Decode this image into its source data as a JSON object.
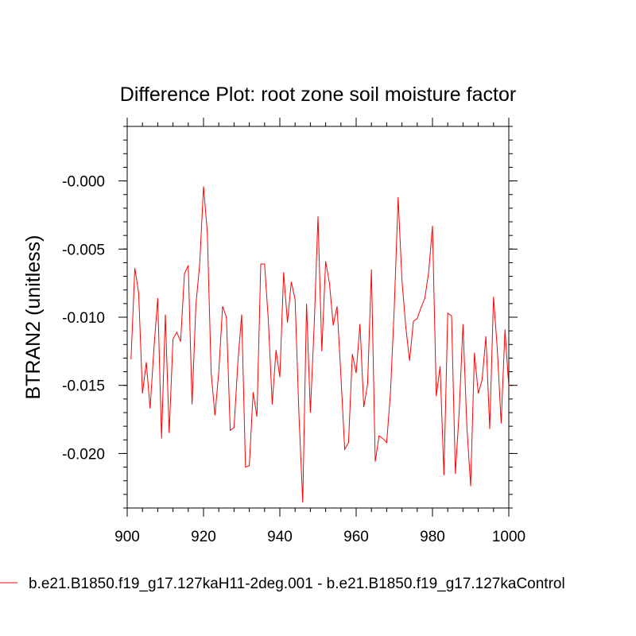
{
  "chart_data": {
    "type": "line",
    "title": "Difference Plot: root zone soil moisture factor",
    "xlabel": "",
    "ylabel": "BTRAN2  (unitless)",
    "xlim": [
      900,
      1000
    ],
    "ylim": [
      -0.024,
      0.004
    ],
    "x_ticks": [
      900,
      920,
      940,
      960,
      980,
      1000
    ],
    "x_tick_labels": [
      "900",
      "920",
      "940",
      "960",
      "980",
      "1000"
    ],
    "y_ticks": [
      0.0,
      -0.005,
      -0.01,
      -0.015,
      -0.02
    ],
    "y_tick_labels": [
      "-0.000",
      "-0.005",
      "-0.010",
      "-0.015",
      "-0.020"
    ],
    "legend_position": "bottom",
    "series": [
      {
        "name": "b.e21.B1850.f19_g17.127kaH11-2deg.001 - b.e21.B1850.f19_g17.127kaControl",
        "color": "#ff0000",
        "x": [
          901,
          902,
          903,
          904,
          905,
          906,
          907,
          908,
          909,
          910,
          911,
          912,
          913,
          914,
          915,
          916,
          917,
          918,
          919,
          920,
          921,
          922,
          923,
          924,
          925,
          926,
          927,
          928,
          929,
          930,
          931,
          932,
          933,
          934,
          935,
          936,
          937,
          938,
          939,
          940,
          941,
          942,
          943,
          944,
          945,
          946,
          947,
          948,
          949,
          950,
          951,
          952,
          953,
          954,
          955,
          956,
          957,
          958,
          959,
          960,
          961,
          962,
          963,
          964,
          965,
          966,
          967,
          968,
          969,
          970,
          971,
          972,
          973,
          974,
          975,
          976,
          977,
          978,
          979,
          980,
          981,
          982,
          983,
          984,
          985,
          986,
          987,
          988,
          989,
          990,
          991,
          992,
          993,
          994,
          995,
          996,
          997,
          998,
          999,
          1000
        ],
        "values": [
          -0.0131,
          -0.0064,
          -0.0082,
          -0.0156,
          -0.0133,
          -0.0167,
          -0.0123,
          -0.0086,
          -0.0189,
          -0.0098,
          -0.0185,
          -0.0116,
          -0.0111,
          -0.0118,
          -0.0068,
          -0.0062,
          -0.0164,
          -0.0091,
          -0.0061,
          -0.0004,
          -0.0038,
          -0.0141,
          -0.0172,
          -0.014,
          -0.0092,
          -0.01,
          -0.0183,
          -0.0181,
          -0.0133,
          -0.0098,
          -0.021,
          -0.0209,
          -0.0155,
          -0.0173,
          -0.0061,
          -0.0061,
          -0.0103,
          -0.0164,
          -0.0124,
          -0.0144,
          -0.0067,
          -0.0104,
          -0.0074,
          -0.0087,
          -0.0171,
          -0.0236,
          -0.009,
          -0.017,
          -0.0106,
          -0.0026,
          -0.0125,
          -0.0059,
          -0.0075,
          -0.0106,
          -0.0092,
          -0.0143,
          -0.0197,
          -0.0192,
          -0.0127,
          -0.0141,
          -0.0105,
          -0.0166,
          -0.0149,
          -0.0065,
          -0.0206,
          -0.0187,
          -0.0189,
          -0.0192,
          -0.0155,
          -0.0092,
          -0.0012,
          -0.0073,
          -0.0107,
          -0.0132,
          -0.0103,
          -0.0101,
          -0.0093,
          -0.0086,
          -0.0067,
          -0.0033,
          -0.0158,
          -0.0136,
          -0.0216,
          -0.0097,
          -0.0099,
          -0.0215,
          -0.0169,
          -0.0105,
          -0.018,
          -0.0224,
          -0.0126,
          -0.0156,
          -0.0146,
          -0.0114,
          -0.0182,
          -0.0085,
          -0.0124,
          -0.0178,
          -0.0109,
          -0.0151
        ]
      }
    ]
  }
}
